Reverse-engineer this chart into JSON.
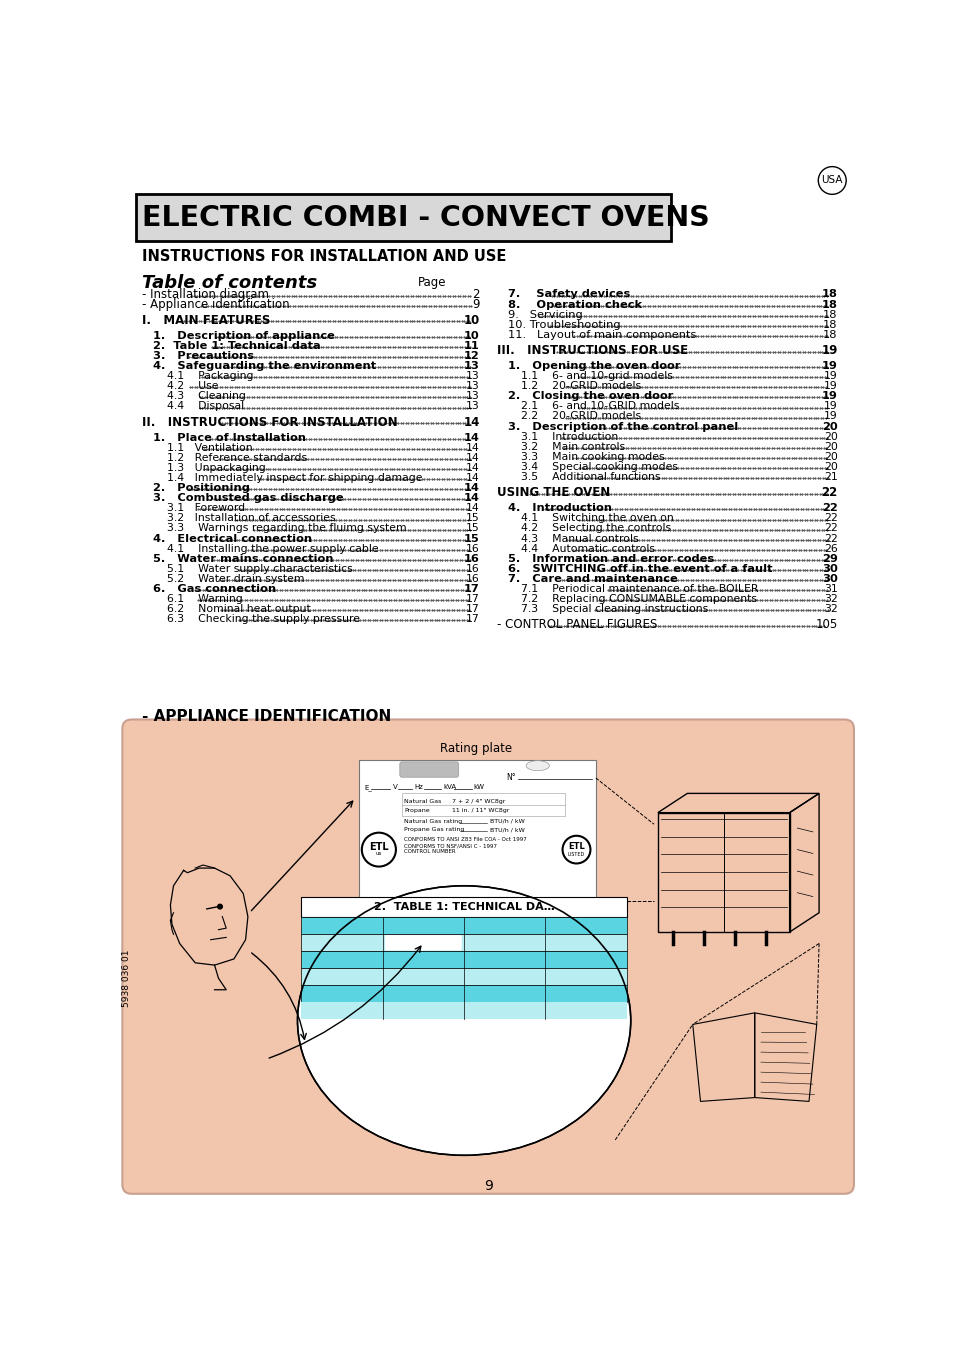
{
  "title": "ELECTRIC COMBI - CONVECT OVENS",
  "subtitle": "INSTRUCTIONS FOR INSTALLATION AND USE",
  "toc_header_left": "Table of contents",
  "toc_header_right": "Page",
  "usa_label": "USA",
  "page_number": "9",
  "sidebar_text": "5938 036 01",
  "appliance_id_header": "- APPLIANCE IDENTIFICATION",
  "rating_plate_label": "Rating plate",
  "bg_color": "#ffffff",
  "illustration_bg": "#f2c5ad",
  "toc_entries_left": [
    {
      "text": "- Installation diagram",
      "page": "2",
      "level": 0,
      "bold": false
    },
    {
      "text": "- Appliance identification",
      "page": "9",
      "level": 0,
      "bold": false
    },
    {
      "text": "",
      "page": "",
      "level": 0,
      "bold": false
    },
    {
      "text": "I.   MAIN FEATURES",
      "page": "10",
      "level": 0,
      "bold": true
    },
    {
      "text": "",
      "page": "",
      "level": 0,
      "bold": false
    },
    {
      "text": "1.   Description of appliance",
      "page": "10",
      "level": 1,
      "bold": true
    },
    {
      "text": "2.  Table 1: Technical data",
      "page": "11",
      "level": 1,
      "bold": true
    },
    {
      "text": "3.   Precautions",
      "page": "12",
      "level": 1,
      "bold": true
    },
    {
      "text": "4.   Safeguarding the environment",
      "page": "13",
      "level": 1,
      "bold": true
    },
    {
      "text": "4.1    Packaging",
      "page": "13",
      "level": 2,
      "bold": false
    },
    {
      "text": "4.2    Use",
      "page": "13",
      "level": 2,
      "bold": false
    },
    {
      "text": "4.3    Cleaning",
      "page": "13",
      "level": 2,
      "bold": false
    },
    {
      "text": "4.4    Disposal",
      "page": "13",
      "level": 2,
      "bold": false
    },
    {
      "text": "",
      "page": "",
      "level": 0,
      "bold": false
    },
    {
      "text": "II.   INSTRUCTIONS FOR INSTALLATION",
      "page": "14",
      "level": 0,
      "bold": true
    },
    {
      "text": "",
      "page": "",
      "level": 0,
      "bold": false
    },
    {
      "text": "1.   Place of Installation",
      "page": "14",
      "level": 1,
      "bold": true
    },
    {
      "text": "1.1   Ventilation",
      "page": "14",
      "level": 2,
      "bold": false
    },
    {
      "text": "1.2   Reference standards",
      "page": "14",
      "level": 2,
      "bold": false
    },
    {
      "text": "1.3   Unpackaging",
      "page": "14",
      "level": 2,
      "bold": false
    },
    {
      "text": "1.4   Immediately inspect for shipping damage",
      "page": "14",
      "level": 2,
      "bold": false
    },
    {
      "text": "2.   Positioning",
      "page": "14",
      "level": 1,
      "bold": true
    },
    {
      "text": "3.   Combusted gas discharge",
      "page": "14",
      "level": 1,
      "bold": true
    },
    {
      "text": "3.1   Foreword",
      "page": "14",
      "level": 2,
      "bold": false
    },
    {
      "text": "3.2   Installation of accessories",
      "page": "15",
      "level": 2,
      "bold": false
    },
    {
      "text": "3.3    Warnings regarding the fluimg system",
      "page": "15",
      "level": 2,
      "bold": false
    },
    {
      "text": "4.   Electrical connection",
      "page": "15",
      "level": 1,
      "bold": true
    },
    {
      "text": "4.1    Installing the power supply cable",
      "page": "16",
      "level": 2,
      "bold": false
    },
    {
      "text": "5.   Water mains connection",
      "page": "16",
      "level": 1,
      "bold": true
    },
    {
      "text": "5.1    Water supply characteristics",
      "page": "16",
      "level": 2,
      "bold": false
    },
    {
      "text": "5.2    Water drain system",
      "page": "16",
      "level": 2,
      "bold": false
    },
    {
      "text": "6.   Gas connection",
      "page": "17",
      "level": 1,
      "bold": true
    },
    {
      "text": "6.1    Warning",
      "page": "17",
      "level": 2,
      "bold": false
    },
    {
      "text": "6.2    Nominal heat output",
      "page": "17",
      "level": 2,
      "bold": false
    },
    {
      "text": "6.3    Checking the supply pressure",
      "page": "17",
      "level": 2,
      "bold": false
    }
  ],
  "toc_entries_right": [
    {
      "text": "7.    Safety devices",
      "page": "18",
      "level": 1,
      "bold": true
    },
    {
      "text": "8.    Operation check",
      "page": "18",
      "level": 1,
      "bold": true
    },
    {
      "text": "9.   Servicing",
      "page": "18",
      "level": 1,
      "bold": false
    },
    {
      "text": "10. Troubleshooting",
      "page": "18",
      "level": 1,
      "bold": false
    },
    {
      "text": "11.   Layout of main components",
      "page": "18",
      "level": 1,
      "bold": false
    },
    {
      "text": "",
      "page": "",
      "level": 0,
      "bold": false
    },
    {
      "text": "III.   INSTRUCTIONS FOR USE",
      "page": "19",
      "level": 0,
      "bold": true
    },
    {
      "text": "",
      "page": "",
      "level": 0,
      "bold": false
    },
    {
      "text": "1.   Opening the oven door",
      "page": "19",
      "level": 1,
      "bold": true
    },
    {
      "text": "1.1    6- and 10-grid models",
      "page": "19",
      "level": 2,
      "bold": false
    },
    {
      "text": "1.2    20-GRID models",
      "page": "19",
      "level": 2,
      "bold": false
    },
    {
      "text": "2.   Closing the oven door",
      "page": "19",
      "level": 1,
      "bold": true
    },
    {
      "text": "2.1    6- and 10-GRID models",
      "page": "19",
      "level": 2,
      "bold": false
    },
    {
      "text": "2.2    20-GRID models",
      "page": "19",
      "level": 2,
      "bold": false
    },
    {
      "text": "3.   Description of the control panel",
      "page": "20",
      "level": 1,
      "bold": true
    },
    {
      "text": "3.1    Introduction",
      "page": "20",
      "level": 2,
      "bold": false
    },
    {
      "text": "3.2    Main controls",
      "page": "20",
      "level": 2,
      "bold": false
    },
    {
      "text": "3.3    Main cooking modes",
      "page": "20",
      "level": 2,
      "bold": false
    },
    {
      "text": "3.4    Special cooking modes",
      "page": "20",
      "level": 2,
      "bold": false
    },
    {
      "text": "3.5    Additional functions",
      "page": "21",
      "level": 2,
      "bold": false
    },
    {
      "text": "",
      "page": "",
      "level": 0,
      "bold": false
    },
    {
      "text": "USING THE OVEN",
      "page": "22",
      "level": 0,
      "bold": true
    },
    {
      "text": "",
      "page": "",
      "level": 0,
      "bold": false
    },
    {
      "text": "4.   Introduction",
      "page": "22",
      "level": 1,
      "bold": true
    },
    {
      "text": "4.1    Switching the oven on",
      "page": "22",
      "level": 2,
      "bold": false
    },
    {
      "text": "4.2    Selecting the controls",
      "page": "22",
      "level": 2,
      "bold": false
    },
    {
      "text": "4.3    Manual controls",
      "page": "22",
      "level": 2,
      "bold": false
    },
    {
      "text": "4.4    Automatic controls",
      "page": "26",
      "level": 2,
      "bold": false
    },
    {
      "text": "5.   Information and error codes",
      "page": "29",
      "level": 1,
      "bold": true
    },
    {
      "text": "6.   SWITCHING off in the event of a fault",
      "page": "30",
      "level": 1,
      "bold": true
    },
    {
      "text": "7.   Care and maintenance",
      "page": "30",
      "level": 1,
      "bold": true
    },
    {
      "text": "7.1    Periodical maintenance of the BOILER",
      "page": "31",
      "level": 2,
      "bold": false
    },
    {
      "text": "7.2    Replacing CONSUMABLE components",
      "page": "32",
      "level": 2,
      "bold": false
    },
    {
      "text": "7.3    Special cleaning instructions",
      "page": "32",
      "level": 2,
      "bold": false
    },
    {
      "text": "",
      "page": "",
      "level": 0,
      "bold": false
    },
    {
      "text": "- CONTROL PANEL FIGURES",
      "page": "105",
      "level": 0,
      "bold": false
    }
  ]
}
